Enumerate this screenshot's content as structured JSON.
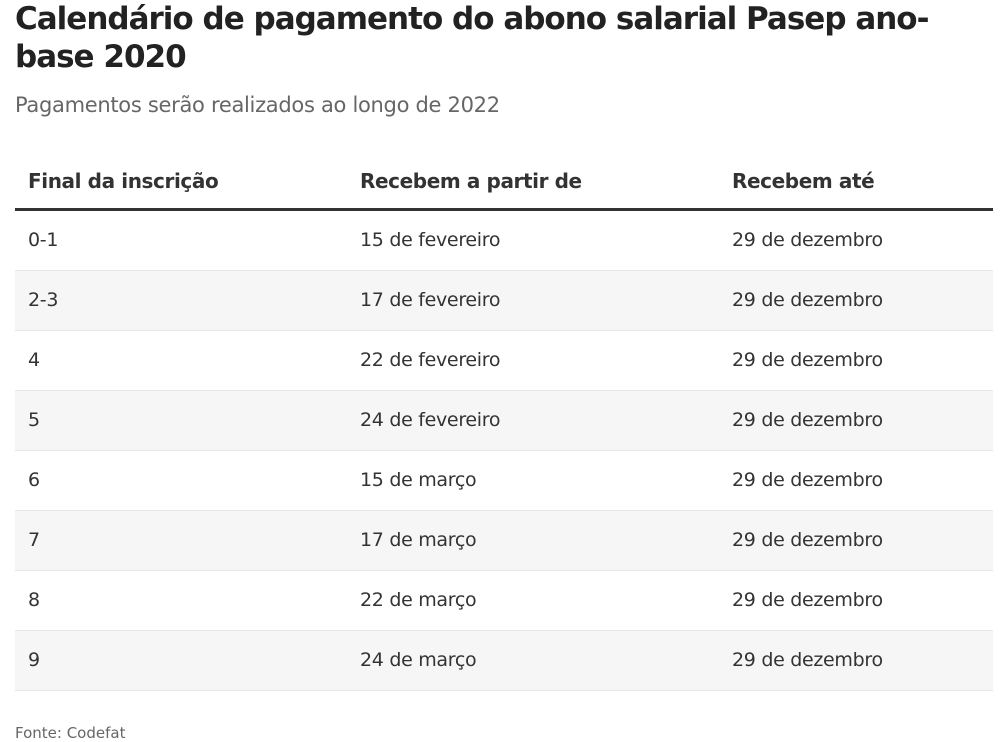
{
  "title": "Calendário de pagamento do abono salarial Pasep ano-base 2020",
  "subtitle": "Pagamentos serão realizados ao longo de 2022",
  "source": "Fonte: Codefat",
  "colors": {
    "header_rule": "#333333",
    "stripe": "#f6f6f6",
    "row_divider": "#e6e6e6"
  },
  "chart_data": {
    "type": "table",
    "columns": [
      "Final da inscrição",
      "Recebem a partir de",
      "Recebem até"
    ],
    "rows": [
      [
        "0-1",
        "15 de fevereiro",
        "29 de dezembro"
      ],
      [
        "2-3",
        "17 de fevereiro",
        "29 de dezembro"
      ],
      [
        "4",
        "22 de fevereiro",
        "29 de dezembro"
      ],
      [
        "5",
        "24 de fevereiro",
        "29 de dezembro"
      ],
      [
        "6",
        "15 de março",
        "29 de dezembro"
      ],
      [
        "7",
        "17 de março",
        "29 de dezembro"
      ],
      [
        "8",
        "22 de março",
        "29 de dezembro"
      ],
      [
        "9",
        "24 de março",
        "29 de dezembro"
      ]
    ]
  }
}
